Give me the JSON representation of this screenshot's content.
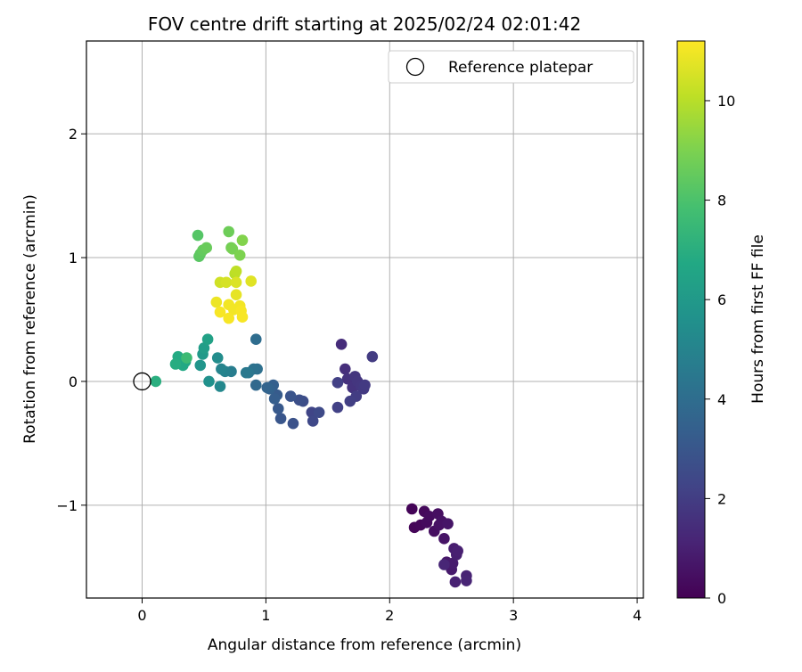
{
  "chart_data": {
    "type": "scatter",
    "title": "FOV centre drift starting at 2025/02/24 02:01:42",
    "xlabel": "Angular distance from reference (arcmin)",
    "ylabel": "Rotation from reference (arcmin)",
    "xlim": [
      -0.45,
      4.05
    ],
    "ylim": [
      -1.75,
      2.75
    ],
    "xticks": [
      0,
      1,
      2,
      3,
      4
    ],
    "xtick_labels": [
      "0",
      "1",
      "2",
      "3",
      "4"
    ],
    "yticks": [
      -1,
      0,
      1,
      2
    ],
    "ytick_labels": [
      "−1",
      "0",
      "1",
      "2"
    ],
    "grid": true,
    "legend": {
      "placement": "top-right",
      "entries": [
        "Reference platepar"
      ]
    },
    "reference_point": {
      "x": 0,
      "y": 0,
      "label": "Reference platepar"
    },
    "colorbar": {
      "label": "Hours from first FF file",
      "colormap": "viridis",
      "range": [
        0,
        11.2
      ],
      "ticks": [
        0,
        2,
        4,
        6,
        8,
        10
      ],
      "tick_labels": [
        "0",
        "2",
        "4",
        "6",
        "8",
        "10"
      ]
    },
    "points": [
      {
        "x": 2.18,
        "y": -1.03,
        "c": 0.1
      },
      {
        "x": 2.2,
        "y": -1.18,
        "c": 0.15
      },
      {
        "x": 2.25,
        "y": -1.16,
        "c": 0.2
      },
      {
        "x": 2.28,
        "y": -1.05,
        "c": 0.25
      },
      {
        "x": 2.3,
        "y": -1.14,
        "c": 0.3
      },
      {
        "x": 2.32,
        "y": -1.09,
        "c": 0.35
      },
      {
        "x": 2.36,
        "y": -1.21,
        "c": 0.4
      },
      {
        "x": 2.39,
        "y": -1.07,
        "c": 0.45
      },
      {
        "x": 2.4,
        "y": -1.16,
        "c": 0.5
      },
      {
        "x": 2.42,
        "y": -1.13,
        "c": 0.55
      },
      {
        "x": 2.44,
        "y": -1.27,
        "c": 0.6
      },
      {
        "x": 2.47,
        "y": -1.15,
        "c": 0.65
      },
      {
        "x": 2.46,
        "y": -1.46,
        "c": 0.7
      },
      {
        "x": 2.49,
        "y": -1.49,
        "c": 0.75
      },
      {
        "x": 2.5,
        "y": -1.52,
        "c": 0.8
      },
      {
        "x": 2.51,
        "y": -1.47,
        "c": 0.85
      },
      {
        "x": 2.52,
        "y": -1.35,
        "c": 0.9
      },
      {
        "x": 2.54,
        "y": -1.4,
        "c": 0.95
      },
      {
        "x": 2.55,
        "y": -1.37,
        "c": 1.0
      },
      {
        "x": 2.53,
        "y": -1.62,
        "c": 1.05
      },
      {
        "x": 2.62,
        "y": -1.57,
        "c": 1.1
      },
      {
        "x": 2.62,
        "y": -1.61,
        "c": 1.15
      },
      {
        "x": 2.44,
        "y": -1.48,
        "c": 1.2
      },
      {
        "x": 1.61,
        "y": 0.3,
        "c": 1.4
      },
      {
        "x": 1.64,
        "y": 0.1,
        "c": 1.5
      },
      {
        "x": 1.66,
        "y": 0.02,
        "c": 1.6
      },
      {
        "x": 1.7,
        "y": -0.05,
        "c": 1.65
      },
      {
        "x": 1.72,
        "y": 0.04,
        "c": 1.7
      },
      {
        "x": 1.74,
        "y": 0.0,
        "c": 1.75
      },
      {
        "x": 1.77,
        "y": -0.04,
        "c": 1.8
      },
      {
        "x": 1.79,
        "y": -0.06,
        "c": 1.85
      },
      {
        "x": 1.8,
        "y": -0.03,
        "c": 1.9
      },
      {
        "x": 1.86,
        "y": 0.2,
        "c": 1.95
      },
      {
        "x": 1.73,
        "y": -0.12,
        "c": 2.0
      },
      {
        "x": 1.68,
        "y": -0.16,
        "c": 2.05
      },
      {
        "x": 1.58,
        "y": -0.01,
        "c": 2.1
      },
      {
        "x": 1.58,
        "y": -0.21,
        "c": 2.15
      },
      {
        "x": 1.37,
        "y": -0.25,
        "c": 2.3
      },
      {
        "x": 1.38,
        "y": -0.32,
        "c": 2.4
      },
      {
        "x": 1.43,
        "y": -0.25,
        "c": 2.5
      },
      {
        "x": 1.3,
        "y": -0.16,
        "c": 2.6
      },
      {
        "x": 1.27,
        "y": -0.15,
        "c": 2.7
      },
      {
        "x": 1.22,
        "y": -0.34,
        "c": 2.8
      },
      {
        "x": 1.2,
        "y": -0.12,
        "c": 2.9
      },
      {
        "x": 1.12,
        "y": -0.3,
        "c": 3.0
      },
      {
        "x": 1.1,
        "y": -0.22,
        "c": 3.1
      },
      {
        "x": 1.09,
        "y": -0.11,
        "c": 3.2
      },
      {
        "x": 1.07,
        "y": -0.14,
        "c": 3.3
      },
      {
        "x": 1.06,
        "y": -0.03,
        "c": 3.4
      },
      {
        "x": 1.03,
        "y": -0.06,
        "c": 3.5
      },
      {
        "x": 1.01,
        "y": -0.05,
        "c": 3.6
      },
      {
        "x": 0.92,
        "y": -0.03,
        "c": 3.8
      },
      {
        "x": 0.92,
        "y": 0.34,
        "c": 4.0
      },
      {
        "x": 0.93,
        "y": 0.1,
        "c": 4.1
      },
      {
        "x": 0.9,
        "y": 0.1,
        "c": 4.2
      },
      {
        "x": 0.86,
        "y": 0.07,
        "c": 4.4
      },
      {
        "x": 0.84,
        "y": 0.07,
        "c": 4.5
      },
      {
        "x": 0.72,
        "y": 0.08,
        "c": 4.7
      },
      {
        "x": 0.67,
        "y": 0.08,
        "c": 4.9
      },
      {
        "x": 0.64,
        "y": 0.1,
        "c": 5.0
      },
      {
        "x": 0.63,
        "y": -0.04,
        "c": 5.2
      },
      {
        "x": 0.61,
        "y": 0.19,
        "c": 5.4
      },
      {
        "x": 0.54,
        "y": 0.0,
        "c": 5.6
      },
      {
        "x": 0.47,
        "y": 0.13,
        "c": 5.8
      },
      {
        "x": 0.49,
        "y": 0.22,
        "c": 6.0
      },
      {
        "x": 0.5,
        "y": 0.27,
        "c": 6.2
      },
      {
        "x": 0.53,
        "y": 0.34,
        "c": 6.4
      },
      {
        "x": 0.35,
        "y": 0.16,
        "c": 6.6
      },
      {
        "x": 0.33,
        "y": 0.13,
        "c": 6.7
      },
      {
        "x": 0.29,
        "y": 0.2,
        "c": 6.8
      },
      {
        "x": 0.27,
        "y": 0.14,
        "c": 6.9
      },
      {
        "x": 0.11,
        "y": 0.0,
        "c": 7.0
      },
      {
        "x": 0.36,
        "y": 0.19,
        "c": 7.6
      },
      {
        "x": 0.45,
        "y": 1.18,
        "c": 8.2
      },
      {
        "x": 0.46,
        "y": 1.01,
        "c": 8.3
      },
      {
        "x": 0.47,
        "y": 1.03,
        "c": 8.4
      },
      {
        "x": 0.49,
        "y": 1.06,
        "c": 8.5
      },
      {
        "x": 0.52,
        "y": 1.08,
        "c": 8.6
      },
      {
        "x": 0.7,
        "y": 1.21,
        "c": 8.7
      },
      {
        "x": 0.72,
        "y": 1.08,
        "c": 8.8
      },
      {
        "x": 0.73,
        "y": 1.07,
        "c": 8.9
      },
      {
        "x": 0.79,
        "y": 1.02,
        "c": 9.0
      },
      {
        "x": 0.81,
        "y": 1.14,
        "c": 9.1
      },
      {
        "x": 0.75,
        "y": 0.87,
        "c": 10.0
      },
      {
        "x": 0.76,
        "y": 0.89,
        "c": 10.1
      },
      {
        "x": 0.63,
        "y": 0.8,
        "c": 10.4
      },
      {
        "x": 0.68,
        "y": 0.8,
        "c": 10.5
      },
      {
        "x": 0.76,
        "y": 0.8,
        "c": 10.6
      },
      {
        "x": 0.88,
        "y": 0.81,
        "c": 10.7
      },
      {
        "x": 0.76,
        "y": 0.7,
        "c": 10.8
      },
      {
        "x": 0.6,
        "y": 0.64,
        "c": 10.9
      },
      {
        "x": 0.7,
        "y": 0.62,
        "c": 11.0
      },
      {
        "x": 0.74,
        "y": 0.58,
        "c": 11.0
      },
      {
        "x": 0.79,
        "y": 0.61,
        "c": 11.0
      },
      {
        "x": 0.8,
        "y": 0.57,
        "c": 11.1
      },
      {
        "x": 0.63,
        "y": 0.56,
        "c": 11.1
      },
      {
        "x": 0.7,
        "y": 0.51,
        "c": 11.1
      },
      {
        "x": 0.81,
        "y": 0.52,
        "c": 11.1
      }
    ]
  }
}
